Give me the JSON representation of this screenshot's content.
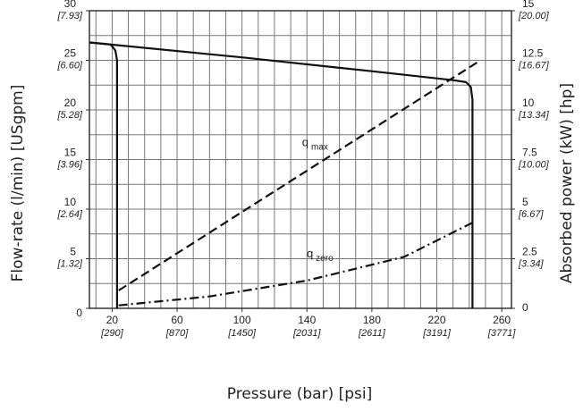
{
  "chart_data": {
    "type": "line",
    "x_label": "Pressure (bar) [psi]",
    "y_label": "Flow-rate (l/min) [USgpm]",
    "y2_label": "Absorbed power (kW) [hp]",
    "xlim": [
      6,
      266
    ],
    "xticks": [
      20,
      60,
      100,
      140,
      180,
      220,
      260
    ],
    "xtick_sublabels": [
      "[290]",
      "[870]",
      "[1450]",
      "[2031]",
      "[2611]",
      "[3191]",
      "[3771]"
    ],
    "xgrid": [
      10,
      20,
      30,
      40,
      50,
      60,
      70,
      80,
      90,
      100,
      110,
      120,
      130,
      140,
      150,
      160,
      170,
      180,
      190,
      200,
      210,
      220,
      230,
      240,
      250,
      260
    ],
    "ylim": [
      0,
      30
    ],
    "yticks": [
      0,
      5,
      10,
      15,
      20,
      25,
      30
    ],
    "ytick_sublabels": [
      null,
      "[1.32]",
      "[2.64]",
      "[3.96]",
      "[5.28]",
      "[6.60]",
      "[7.93]"
    ],
    "ygrid": [
      2.5,
      5,
      7.5,
      10,
      12.5,
      15,
      17.5,
      20,
      22.5,
      25,
      27.5
    ],
    "y2lim": [
      0,
      15
    ],
    "y2ticks": [
      0,
      2.5,
      5,
      7.5,
      10,
      12.5,
      15
    ],
    "y2tick_sublabels": [
      null,
      "[3.34]",
      "[6.67]",
      "[10.00]",
      "[13.34]",
      "[16.67]",
      "[20.00]"
    ],
    "grid": true,
    "series": [
      {
        "color": "#111111",
        "style": "solid",
        "x": [
          6,
          100,
          180,
          230,
          238,
          241,
          242,
          242
        ],
        "values": [
          26.8,
          25.3,
          23.9,
          23.0,
          22.8,
          22.3,
          21,
          0
        ]
      },
      {
        "color": "#111111",
        "style": "solid",
        "x": [
          6,
          19,
          22,
          23,
          23
        ],
        "values": [
          26.8,
          26.6,
          26,
          25,
          0
        ]
      },
      {
        "color": "#111111",
        "style": "dashed",
        "axis": "y2",
        "x": [
          24,
          245
        ],
        "values": [
          0.9,
          12.4
        ]
      },
      {
        "color": "#111111",
        "style": "dashdot",
        "axis": "y2",
        "x": [
          24,
          80,
          140,
          200,
          244
        ],
        "values": [
          0.15,
          0.6,
          1.4,
          2.6,
          4.4
        ]
      }
    ],
    "annotations": [
      {
        "text": "q",
        "sub": "max",
        "x": 145,
        "y2": 8.3
      },
      {
        "text": "q",
        "sub": "zero",
        "x": 148,
        "y2": 2.7
      }
    ]
  }
}
